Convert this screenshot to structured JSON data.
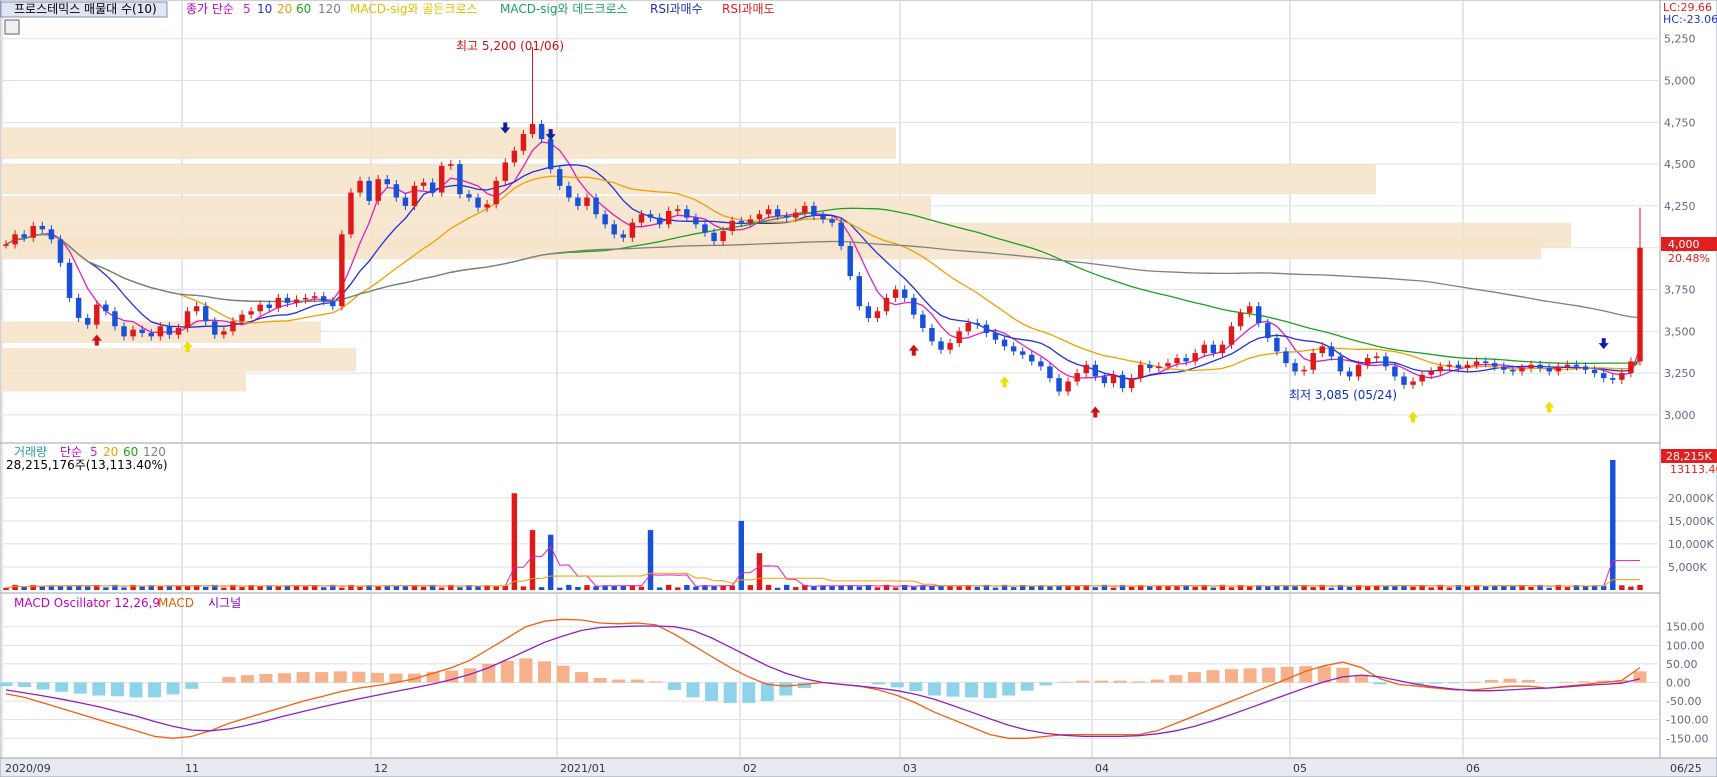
{
  "legend_main": {
    "title": "프로스테믹스 매물대 수(10)",
    "price_label": "종가 단순",
    "ma_periods": [
      "5",
      "10",
      "20",
      "60",
      "120"
    ],
    "ma_colors": [
      "#e020c0",
      "#2030e0",
      "#f0a000",
      "#20a020",
      "#808080"
    ],
    "golden_cross": "MACD-sig와 골든크로스",
    "dead_cross": "MACD-sig와 데드크로스",
    "rsi_buy": "RSI과매수",
    "rsi_sell": "RSI과매도"
  },
  "legend_volume": {
    "title": "거래량",
    "ma_label": "단순",
    "ma_periods": [
      "5",
      "20",
      "60",
      "120"
    ],
    "current": "28,215,176주(13,113.40%)"
  },
  "legend_macd": {
    "title": "MACD Oscillator 12,26,9",
    "macd": "MACD",
    "signal": "시그널"
  },
  "right_badges": {
    "lc": "LC:29.66",
    "hc": "HC:-23.06",
    "price": "4,000",
    "change": "20.48%",
    "volume": "28,215K",
    "volume_pct": "13113.40"
  },
  "annotations": {
    "high": "최고 5,200 (01/06)",
    "low": "최저 3,085 (05/24)"
  },
  "chart_data": {
    "type": "candlestick",
    "price_axis": {
      "ylim": [
        2850,
        5350
      ],
      "ticks": [
        "3,000",
        "3,250",
        "3,500",
        "3,750",
        "4,000",
        "4,250",
        "4,500",
        "4,750",
        "5,000",
        "5,250"
      ]
    },
    "volume_axis": {
      "ylim": [
        0,
        28215
      ],
      "ticks": [
        "5,000K",
        "10,000K",
        "15,000K",
        "20,000K"
      ]
    },
    "macd_axis": {
      "ylim": [
        -195,
        195
      ],
      "ticks": [
        "150.00",
        "100.00",
        "50.00",
        "0.00",
        "-50.00",
        "-100.00",
        "-150.00"
      ]
    },
    "x_labels": [
      "2020/09",
      "11",
      "12",
      "2021/01",
      "02",
      "03",
      "04",
      "05",
      "06",
      "06/25"
    ],
    "price_path": [
      4020,
      4080,
      4060,
      4130,
      4110,
      4050,
      3910,
      3700,
      3580,
      3540,
      3660,
      3620,
      3530,
      3470,
      3510,
      3490,
      3470,
      3530,
      3480,
      3520,
      3620,
      3650,
      3560,
      3480,
      3500,
      3560,
      3600,
      3620,
      3660,
      3640,
      3700,
      3670,
      3690,
      3700,
      3710,
      3680,
      3650,
      4080,
      4330,
      4400,
      4280,
      4410,
      4380,
      4300,
      4250,
      4370,
      4390,
      4330,
      4490,
      4500,
      4320,
      4300,
      4240,
      4260,
      4400,
      4510,
      4580,
      4680,
      4740,
      4650,
      4470,
      4370,
      4300,
      4250,
      4300,
      4200,
      4140,
      4080,
      4060,
      4150,
      4200,
      4180,
      4140,
      4220,
      4230,
      4180,
      4140,
      4090,
      4040,
      4100,
      4160,
      4150,
      4170,
      4200,
      4230,
      4190,
      4180,
      4210,
      4250,
      4190,
      4170,
      4150,
      4010,
      3830,
      3650,
      3580,
      3620,
      3700,
      3750,
      3700,
      3600,
      3520,
      3440,
      3390,
      3430,
      3500,
      3550,
      3540,
      3490,
      3450,
      3410,
      3380,
      3360,
      3320,
      3290,
      3220,
      3140,
      3200,
      3250,
      3300,
      3230,
      3190,
      3240,
      3160,
      3220,
      3300,
      3280,
      3290,
      3310,
      3340,
      3320,
      3370,
      3420,
      3370,
      3420,
      3530,
      3610,
      3650,
      3550,
      3460,
      3380,
      3310,
      3260,
      3270,
      3370,
      3410,
      3350,
      3260,
      3230,
      3300,
      3340,
      3350,
      3290,
      3230,
      3180,
      3200,
      3240,
      3260,
      3290,
      3300,
      3280,
      3300,
      3320,
      3310,
      3290,
      3270,
      3260,
      3280,
      3300,
      3280,
      3260,
      3290,
      3300,
      3290,
      3270,
      3250,
      3220,
      3210,
      3250,
      3320,
      4000
    ],
    "price_highs": {
      "index_2021_01_06": 5200,
      "last_day_high": 4240
    },
    "price_lows": {
      "index_05_24": 3085
    },
    "volume_spikes_k": [
      [
        56,
        21000
      ],
      [
        58,
        13000
      ],
      [
        60,
        12000
      ],
      [
        71,
        13000
      ],
      [
        81,
        15000
      ],
      [
        83,
        8000
      ],
      [
        177,
        28215
      ]
    ],
    "volume_base_k": 800,
    "macd_line": [
      -30,
      -40,
      -55,
      -70,
      -85,
      -100,
      -115,
      -130,
      -145,
      -150,
      -145,
      -130,
      -110,
      -95,
      -80,
      -65,
      -50,
      -38,
      -25,
      -15,
      -8,
      0,
      10,
      25,
      40,
      60,
      90,
      120,
      150,
      165,
      170,
      168,
      160,
      158,
      160,
      155,
      130,
      100,
      70,
      40,
      15,
      -5,
      -10,
      -5,
      0,
      -5,
      -10,
      -20,
      -35,
      -55,
      -80,
      -100,
      -120,
      -140,
      -150,
      -150,
      -145,
      -140,
      -140,
      -140,
      -140,
      -140,
      -130,
      -110,
      -90,
      -70,
      -50,
      -30,
      -10,
      10,
      30,
      45,
      55,
      40,
      10,
      -5,
      -10,
      -15,
      -20,
      -20,
      -15,
      -10,
      -10,
      -15,
      -10,
      -5,
      0,
      5,
      40
    ],
    "signal_line": [
      -20,
      -28,
      -36,
      -45,
      -55,
      -65,
      -78,
      -90,
      -105,
      -118,
      -128,
      -130,
      -125,
      -115,
      -103,
      -90,
      -78,
      -66,
      -55,
      -44,
      -34,
      -24,
      -14,
      -4,
      8,
      22,
      40,
      62,
      85,
      108,
      125,
      140,
      148,
      150,
      152,
      152,
      150,
      140,
      120,
      95,
      70,
      45,
      25,
      10,
      0,
      -5,
      -10,
      -15,
      -22,
      -32,
      -45,
      -62,
      -80,
      -98,
      -115,
      -128,
      -137,
      -142,
      -145,
      -145,
      -145,
      -143,
      -138,
      -130,
      -118,
      -103,
      -86,
      -68,
      -50,
      -32,
      -14,
      2,
      15,
      20,
      15,
      5,
      -5,
      -12,
      -18,
      -22,
      -22,
      -20,
      -17,
      -15,
      -12,
      -8,
      -5,
      -2,
      10
    ],
    "osc_hist": [
      -10,
      -12,
      -19,
      -25,
      -30,
      -35,
      -37,
      -40,
      -40,
      -32,
      -17,
      0,
      15,
      20,
      23,
      25,
      28,
      28,
      30,
      29,
      26,
      24,
      24,
      29,
      32,
      38,
      50,
      58,
      65,
      57,
      45,
      28,
      12,
      8,
      8,
      3,
      -20,
      -40,
      -50,
      -55,
      -55,
      -50,
      -35,
      -15,
      0,
      0,
      0,
      -5,
      -13,
      -23,
      -35,
      -38,
      -40,
      -42,
      -35,
      -22,
      -8,
      2,
      5,
      5,
      5,
      3,
      8,
      20,
      28,
      33,
      36,
      38,
      40,
      42,
      44,
      43,
      40,
      20,
      -5,
      0,
      -5,
      -3,
      -2,
      2,
      7,
      10,
      7,
      0,
      2,
      3,
      5,
      7,
      30
    ]
  }
}
